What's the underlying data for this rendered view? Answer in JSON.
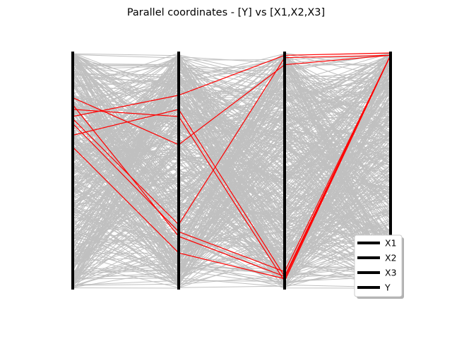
{
  "chart_data": {
    "type": "parallel_coordinates",
    "title": "Parallel coordinates - [Y] vs [X1,X2,X3]",
    "axes": [
      "X1",
      "X2",
      "X3",
      "Y"
    ],
    "ylim": [
      0,
      1
    ],
    "grid": false,
    "legend": {
      "placement": "lower-right",
      "entries": [
        "X1",
        "X2",
        "X3",
        "Y"
      ]
    },
    "colors": {
      "background_lines": "#c0c0c0",
      "highlight_lines": "#ff0000",
      "axis_lines": "#000000"
    },
    "highlighted_series": [
      {
        "values": [
          0.81,
          0.61,
          0.95,
          0.99
        ]
      },
      {
        "values": [
          0.78,
          0.22,
          0.05,
          0.99
        ]
      },
      {
        "values": [
          0.76,
          0.73,
          0.03,
          0.99
        ]
      },
      {
        "values": [
          0.73,
          0.82,
          0.99,
          1.0
        ]
      },
      {
        "values": [
          0.72,
          0.27,
          0.98,
          0.99
        ]
      },
      {
        "values": [
          0.7,
          0.24,
          0.07,
          0.99
        ]
      },
      {
        "values": [
          0.65,
          0.76,
          0.05,
          0.99
        ]
      },
      {
        "values": [
          0.6,
          0.15,
          0.04,
          0.99
        ]
      }
    ],
    "background_line_count": 450,
    "background_seed": 20240613
  }
}
